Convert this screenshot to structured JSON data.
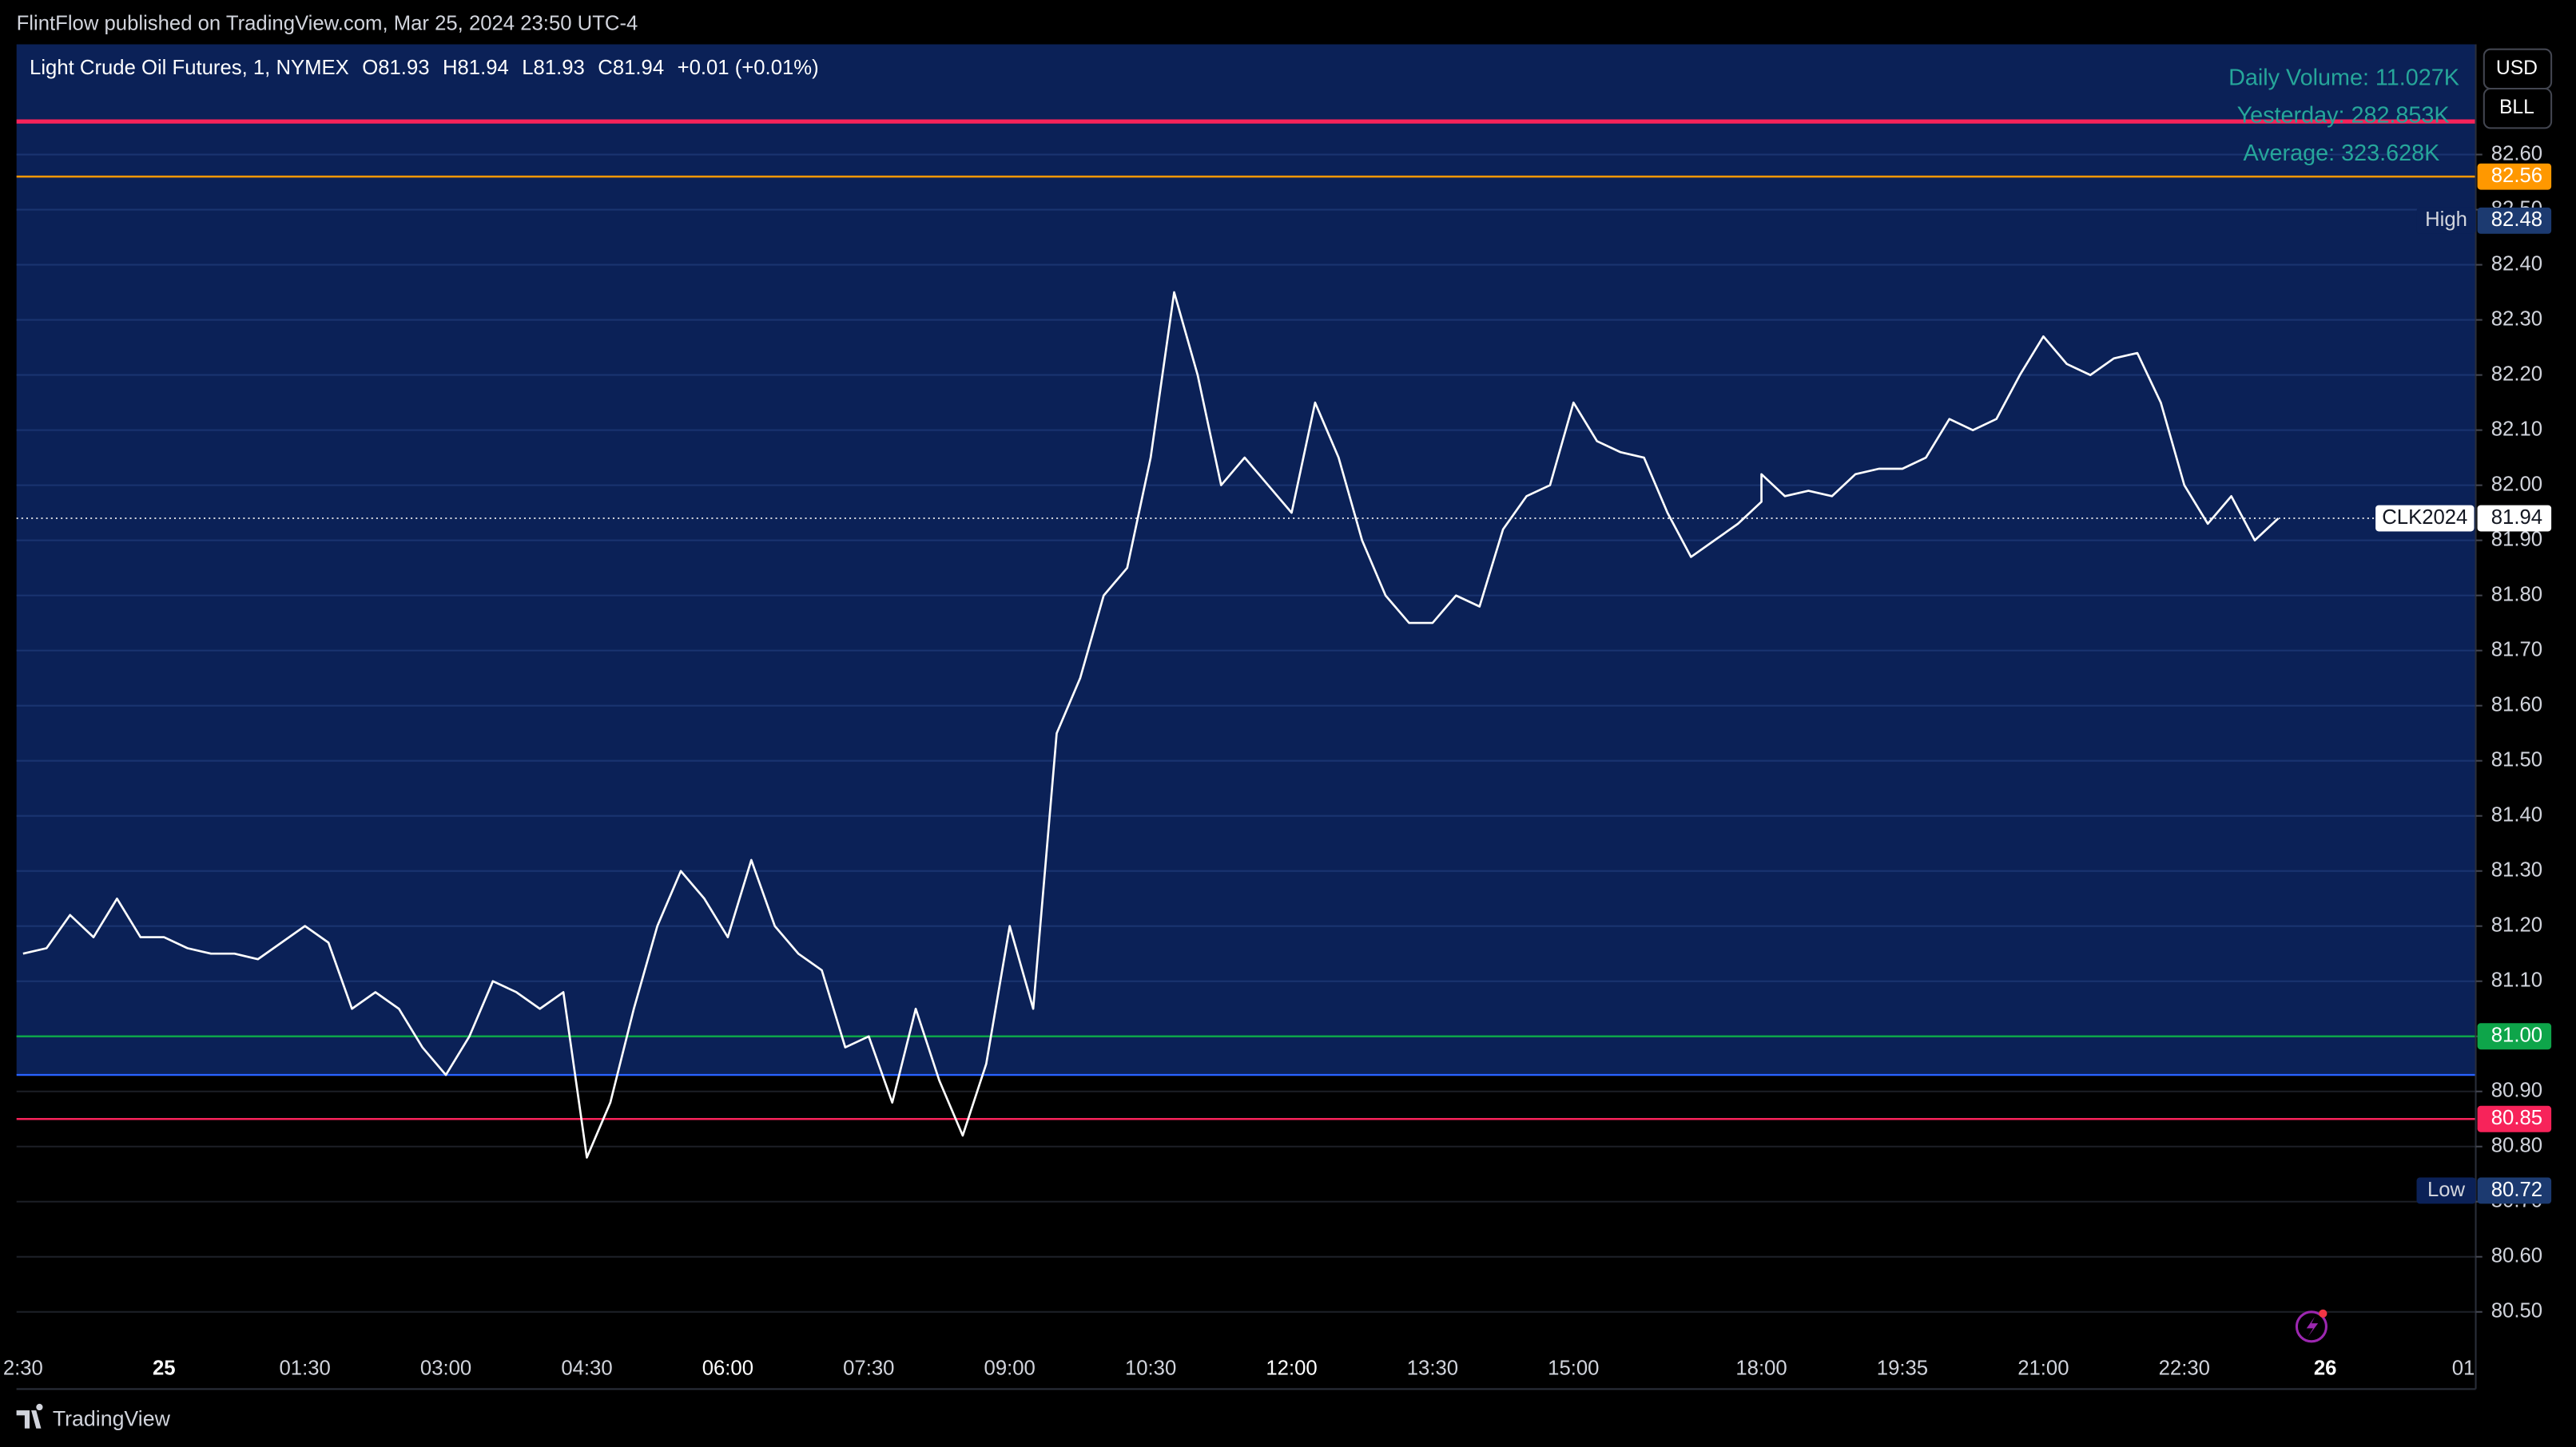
{
  "header": {
    "publisher": "FlintFlow published on TradingView.com, Mar 25, 2024 23:50 UTC-4"
  },
  "chart_data": {
    "type": "line",
    "title": "Light Crude Oil Futures, 1, NYMEX",
    "ohlc": [
      "O81.93",
      "H81.94",
      "L81.93",
      "C81.94"
    ],
    "change": "+0.01 (+0.01%)",
    "volume_stats": [
      "Daily Volume: 11.027K",
      "Yesterday: 282.853K",
      "Average: 323.628K"
    ],
    "currency": "USD",
    "unit": "BLL",
    "categories": [
      "2:30",
      null,
      null,
      null,
      null,
      null,
      "25",
      null,
      null,
      null,
      null,
      null,
      "01:30",
      null,
      null,
      null,
      null,
      null,
      "03:00",
      null,
      null,
      null,
      null,
      null,
      "04:30",
      null,
      null,
      null,
      null,
      null,
      "06:00",
      null,
      null,
      null,
      null,
      null,
      "07:30",
      null,
      null,
      null,
      null,
      null,
      "09:00",
      null,
      null,
      null,
      null,
      null,
      "10:30",
      null,
      null,
      null,
      null,
      null,
      "12:00",
      null,
      null,
      null,
      null,
      null,
      "13:30",
      null,
      null,
      null,
      null,
      null,
      "15:00",
      null,
      null,
      null,
      null,
      null,
      null,
      null,
      null,
      "18:00",
      null,
      null,
      null,
      null,
      null,
      "19:35",
      null,
      null,
      null,
      null,
      null,
      "21:00",
      null,
      null,
      null,
      null,
      null,
      "22:30",
      null,
      null,
      null,
      null,
      null,
      "26",
      null,
      null,
      null,
      null,
      null,
      "01:"
    ],
    "values": [
      81.15,
      81.16,
      81.22,
      81.18,
      81.25,
      81.18,
      81.18,
      81.16,
      81.15,
      81.15,
      81.14,
      81.17,
      81.2,
      81.17,
      81.05,
      81.08,
      81.05,
      80.98,
      80.93,
      81.0,
      81.1,
      81.08,
      81.05,
      81.08,
      80.78,
      80.88,
      81.05,
      81.2,
      81.3,
      81.25,
      81.18,
      81.32,
      81.2,
      81.15,
      81.12,
      80.98,
      81.0,
      80.88,
      81.05,
      80.92,
      80.82,
      80.95,
      81.2,
      81.05,
      81.55,
      81.65,
      81.8,
      81.85,
      82.05,
      82.35,
      82.2,
      82.0,
      82.05,
      82.0,
      81.95,
      82.15,
      82.05,
      81.9,
      81.8,
      81.75,
      81.75,
      81.8,
      81.78,
      81.92,
      81.98,
      82.0,
      82.15,
      82.08,
      82.06,
      82.05,
      81.95,
      81.87,
      81.9,
      81.93,
      81.97,
      82.02,
      81.98,
      81.99,
      81.98,
      82.02,
      82.03,
      82.03,
      82.05,
      82.12,
      82.1,
      82.12,
      82.2,
      82.27,
      82.22,
      82.2,
      82.23,
      82.24,
      82.15,
      82.0,
      81.93,
      81.98,
      81.9,
      81.94,
      null,
      null,
      null,
      null,
      null,
      null,
      null,
      null
    ],
    "color": "#ffffff",
    "ylim": [
      80.36,
      82.8
    ],
    "yticks": [
      {
        "value": 80.5,
        "label": "80.50"
      },
      {
        "value": 80.6,
        "label": "80.60"
      },
      {
        "value": 80.7,
        "label": "80.70"
      },
      {
        "value": 80.8,
        "label": "80.80"
      },
      {
        "value": 80.9,
        "label": "80.90"
      },
      {
        "value": 81.0,
        "label": "81.00"
      },
      {
        "value": 81.1,
        "label": "81.10"
      },
      {
        "value": 81.2,
        "label": "81.20"
      },
      {
        "value": 81.3,
        "label": "81.30"
      },
      {
        "value": 81.4,
        "label": "81.40"
      },
      {
        "value": 81.5,
        "label": "81.50"
      },
      {
        "value": 81.6,
        "label": "81.60"
      },
      {
        "value": 81.7,
        "label": "81.70"
      },
      {
        "value": 81.8,
        "label": "81.80"
      },
      {
        "value": 81.9,
        "label": "81.90"
      },
      {
        "value": 82.0,
        "label": "82.00"
      },
      {
        "value": 82.1,
        "label": "82.10"
      },
      {
        "value": 82.2,
        "label": "82.20"
      },
      {
        "value": 82.3,
        "label": "82.30"
      },
      {
        "value": 82.4,
        "label": "82.40"
      },
      {
        "value": 82.5,
        "label": "82.50"
      },
      {
        "value": 82.6,
        "label": "82.60"
      }
    ],
    "grid": true,
    "levels": [
      {
        "value": 82.66,
        "color": "#f7235a"
      },
      {
        "value": 82.56,
        "label": "82.56",
        "color": "#ff9800"
      },
      {
        "value": 81.0,
        "label": "81.00",
        "color": "#0ea54a"
      },
      {
        "value": 80.93,
        "color": "#2962ff"
      },
      {
        "value": 80.85,
        "label": "80.85",
        "color": "#f7235a"
      }
    ],
    "last_price": {
      "value": 81.94,
      "label": "81.94",
      "symbol": "CLK2024"
    },
    "high": {
      "value": 82.48,
      "label": "82.48",
      "text": "High"
    },
    "low": {
      "value": 80.72,
      "label": "80.72",
      "text": "Low"
    }
  },
  "footer": {
    "brand": "TradingView"
  }
}
